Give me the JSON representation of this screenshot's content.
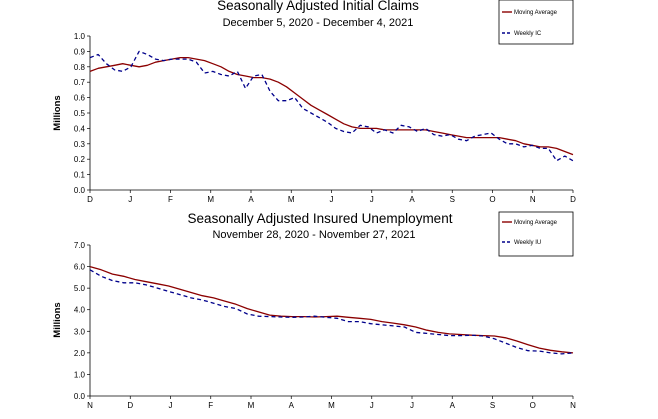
{
  "chart_data": [
    {
      "type": "line",
      "title": "Seasonally Adjusted Initial Claims",
      "subtitle": "December 5, 2020 - December 4, 2021",
      "ylabel": "Millions",
      "xlabel": "",
      "ylim": [
        0,
        1.0
      ],
      "y_ticks": [
        "0.0",
        "0.1",
        "0.2",
        "0.3",
        "0.4",
        "0.5",
        "0.6",
        "0.7",
        "0.8",
        "0.9",
        "1.0"
      ],
      "x_tick_labels": [
        "D",
        "J",
        "F",
        "M",
        "A",
        "M",
        "J",
        "J",
        "A",
        "S",
        "O",
        "N",
        "D"
      ],
      "legend": {
        "position": "top-right",
        "entries": [
          "Moving Average",
          "Weekly IC"
        ]
      },
      "grid": false,
      "series": [
        {
          "name": "Moving Average",
          "color": "#8b0000",
          "style": "solid",
          "values": [
            0.77,
            0.79,
            0.8,
            0.81,
            0.82,
            0.81,
            0.8,
            0.81,
            0.83,
            0.84,
            0.85,
            0.86,
            0.86,
            0.85,
            0.84,
            0.82,
            0.8,
            0.77,
            0.75,
            0.74,
            0.73,
            0.73,
            0.72,
            0.7,
            0.67,
            0.63,
            0.59,
            0.55,
            0.52,
            0.49,
            0.46,
            0.43,
            0.41,
            0.4,
            0.4,
            0.4,
            0.39,
            0.39,
            0.39,
            0.39,
            0.39,
            0.39,
            0.38,
            0.37,
            0.36,
            0.35,
            0.34,
            0.34,
            0.34,
            0.34,
            0.34,
            0.33,
            0.32,
            0.3,
            0.29,
            0.28,
            0.28,
            0.27,
            0.25,
            0.23
          ]
        },
        {
          "name": "Weekly IC",
          "color": "#00008b",
          "style": "dashed",
          "values": [
            0.86,
            0.88,
            0.82,
            0.78,
            0.77,
            0.8,
            0.9,
            0.88,
            0.85,
            0.84,
            0.85,
            0.85,
            0.85,
            0.83,
            0.76,
            0.77,
            0.75,
            0.74,
            0.77,
            0.66,
            0.74,
            0.75,
            0.64,
            0.58,
            0.58,
            0.6,
            0.53,
            0.5,
            0.47,
            0.44,
            0.4,
            0.38,
            0.37,
            0.42,
            0.41,
            0.37,
            0.39,
            0.37,
            0.42,
            0.41,
            0.38,
            0.4,
            0.36,
            0.35,
            0.36,
            0.33,
            0.32,
            0.35,
            0.36,
            0.37,
            0.33,
            0.3,
            0.3,
            0.28,
            0.29,
            0.27,
            0.27,
            0.19,
            0.22,
            0.19
          ]
        }
      ]
    },
    {
      "type": "line",
      "title": "Seasonally Adjusted Insured Unemployment",
      "subtitle": "November 28, 2020 - November 27, 2021",
      "ylabel": "Millions",
      "xlabel": "",
      "ylim": [
        0,
        7.0
      ],
      "y_ticks": [
        "0.0",
        "1.0",
        "2.0",
        "3.0",
        "4.0",
        "5.0",
        "6.0",
        "7.0"
      ],
      "x_tick_labels": [
        "N",
        "D",
        "J",
        "F",
        "M",
        "A",
        "M",
        "J",
        "J",
        "A",
        "S",
        "O",
        "N"
      ],
      "legend": {
        "position": "top-right",
        "entries": [
          "Moving Average",
          "Weekly IU"
        ]
      },
      "grid": false,
      "series": [
        {
          "name": "Moving Average",
          "color": "#8b0000",
          "style": "solid",
          "values": [
            6.0,
            5.85,
            5.65,
            5.55,
            5.4,
            5.3,
            5.2,
            5.1,
            4.95,
            4.8,
            4.65,
            4.55,
            4.4,
            4.25,
            4.05,
            3.9,
            3.75,
            3.7,
            3.68,
            3.68,
            3.66,
            3.68,
            3.7,
            3.65,
            3.6,
            3.55,
            3.45,
            3.38,
            3.3,
            3.2,
            3.05,
            2.95,
            2.88,
            2.85,
            2.82,
            2.8,
            2.78,
            2.7,
            2.55,
            2.38,
            2.22,
            2.12,
            2.05,
            2.0
          ]
        },
        {
          "name": "Weekly IU",
          "color": "#00008b",
          "style": "dashed",
          "values": [
            5.85,
            5.55,
            5.35,
            5.25,
            5.25,
            5.15,
            5.0,
            4.85,
            4.7,
            4.55,
            4.45,
            4.3,
            4.15,
            4.05,
            3.8,
            3.7,
            3.68,
            3.66,
            3.65,
            3.66,
            3.7,
            3.65,
            3.6,
            3.45,
            3.45,
            3.35,
            3.3,
            3.25,
            3.2,
            2.95,
            2.9,
            2.85,
            2.8,
            2.8,
            2.82,
            2.78,
            2.65,
            2.45,
            2.25,
            2.1,
            2.08,
            2.0,
            1.95,
            2.0
          ]
        }
      ]
    }
  ]
}
